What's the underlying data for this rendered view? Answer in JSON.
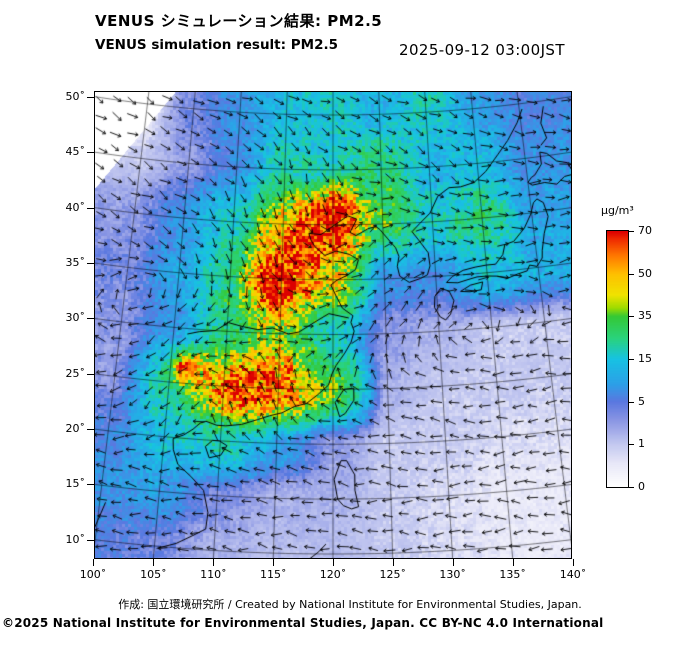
{
  "header": {
    "title_ja": "VENUS シミュレーション結果: PM2.5",
    "title_en": "VENUS simulation result: PM2.5",
    "timestamp": "2025-09-12 03:00JST"
  },
  "footer": {
    "credit": "作成: 国立環境研究所 / Created by National Institute for Environmental Studies, Japan.",
    "license": "©2025 National Institute for Environmental Studies, Japan. CC BY-NC 4.0 International"
  },
  "map": {
    "lat_tick_labels": [
      "50˚",
      "45˚",
      "40˚",
      "35˚",
      "30˚",
      "25˚",
      "20˚",
      "15˚",
      "10˚"
    ],
    "lon_tick_labels": [
      "100˚",
      "105˚",
      "110˚",
      "115˚",
      "120˚",
      "125˚",
      "130˚",
      "135˚",
      "140˚"
    ]
  },
  "chart_data": {
    "type": "heatmap",
    "title": "VENUS simulation result: PM2.5",
    "variable": "PM2.5",
    "unit": "µg/m³",
    "timestamp": "2025-09-12 03:00JST",
    "projection": "lambert-conic-like",
    "lon_ticks": [
      100,
      105,
      110,
      115,
      120,
      125,
      130,
      135,
      140
    ],
    "lat_ticks": [
      50,
      45,
      40,
      35,
      30,
      25,
      20,
      15,
      10
    ],
    "colorbar": {
      "unit": "µg/m³",
      "tick_values": [
        70,
        50,
        35,
        15,
        5,
        1,
        0
      ],
      "stops": [
        {
          "t": 0.0,
          "color": "#ffffff"
        },
        {
          "t": 0.09,
          "color": "#e8e8f8"
        },
        {
          "t": 0.167,
          "color": "#c3c8f0"
        },
        {
          "t": 0.26,
          "color": "#8a96e4"
        },
        {
          "t": 0.333,
          "color": "#5a78e0"
        },
        {
          "t": 0.4,
          "color": "#2da0e8"
        },
        {
          "t": 0.5,
          "color": "#17c3e3"
        },
        {
          "t": 0.58,
          "color": "#2ad37e"
        },
        {
          "t": 0.667,
          "color": "#35c935"
        },
        {
          "t": 0.7,
          "color": "#9fdc00"
        },
        {
          "t": 0.75,
          "color": "#f0e400"
        },
        {
          "t": 0.833,
          "color": "#ffc000"
        },
        {
          "t": 0.91,
          "color": "#ff7300"
        },
        {
          "t": 0.97,
          "color": "#ef2a00"
        },
        {
          "t": 1.0,
          "color": "#dc0000"
        }
      ]
    },
    "grid": {
      "lons": [
        100,
        105,
        110,
        115,
        120,
        125,
        130,
        135,
        140
      ],
      "lats": [
        50,
        45,
        40,
        35,
        30,
        25,
        20,
        15,
        10
      ],
      "values_ugm3": [
        [
          0,
          4,
          8,
          14,
          18,
          12,
          18,
          10,
          6
        ],
        [
          1,
          3,
          7,
          20,
          18,
          28,
          12,
          15,
          8
        ],
        [
          3,
          8,
          18,
          45,
          60,
          30,
          18,
          25,
          10
        ],
        [
          4,
          10,
          22,
          65,
          45,
          8,
          7,
          15,
          12
        ],
        [
          3,
          9,
          25,
          38,
          18,
          3,
          2,
          1,
          1
        ],
        [
          3,
          22,
          50,
          60,
          35,
          2,
          1,
          1,
          1
        ],
        [
          6,
          15,
          20,
          10,
          3,
          1,
          1,
          0.7,
          0.7
        ],
        [
          8,
          9,
          4,
          2,
          2,
          1,
          0.7,
          0.5,
          0.5
        ],
        [
          6,
          4,
          2,
          1.5,
          1.5,
          1,
          0.7,
          0.5,
          0.5
        ]
      ]
    },
    "hotspots": [
      {
        "lon": 106.5,
        "lat": 26.5,
        "amp": 45,
        "sigma": 0.9
      },
      {
        "lon": 120.5,
        "lat": 41.5,
        "amp": 22,
        "sigma": 1.6
      },
      {
        "lon": 117.5,
        "lat": 39.0,
        "amp": 18,
        "sigma": 1.5
      },
      {
        "lon": 113.0,
        "lat": 34.5,
        "amp": 12,
        "sigma": 2.0
      },
      {
        "lon": 111.5,
        "lat": 24.5,
        "amp": 15,
        "sigma": 1.8
      }
    ],
    "overlays": [
      "wind-vector-arrows",
      "coastlines",
      "graticule"
    ],
    "value_range": [
      0,
      70
    ]
  }
}
